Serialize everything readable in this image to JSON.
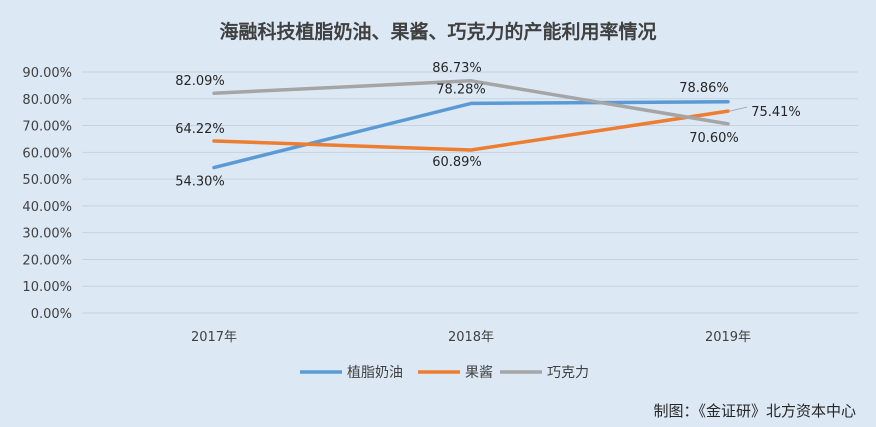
{
  "chart_data": {
    "type": "line",
    "title": "海融科技植脂奶油、果酱、巧克力的产能利用率情况",
    "xlabel": "",
    "ylabel": "",
    "categories": [
      "2017年",
      "2018年",
      "2019年"
    ],
    "ylim": [
      0,
      90
    ],
    "yticks": [
      "0.00%",
      "10.00%",
      "20.00%",
      "30.00%",
      "40.00%",
      "50.00%",
      "60.00%",
      "70.00%",
      "80.00%",
      "90.00%"
    ],
    "grid": true,
    "legend_position": "bottom",
    "series": [
      {
        "name": "植脂奶油",
        "values": [
          54.3,
          78.28,
          78.86
        ],
        "labels": [
          "54.30%",
          "78.28%",
          "78.86%"
        ],
        "color": "#5b9bd5"
      },
      {
        "name": "果酱",
        "values": [
          64.22,
          60.89,
          75.41
        ],
        "labels": [
          "64.22%",
          "60.89%",
          "75.41%"
        ],
        "color": "#ed7d31"
      },
      {
        "name": "巧克力",
        "values": [
          82.09,
          86.73,
          70.6
        ],
        "labels": [
          "82.09%",
          "86.73%",
          "70.60%"
        ],
        "color": "#a5a5a5"
      }
    ],
    "source": "制图：《金证研》北方资本中心"
  }
}
